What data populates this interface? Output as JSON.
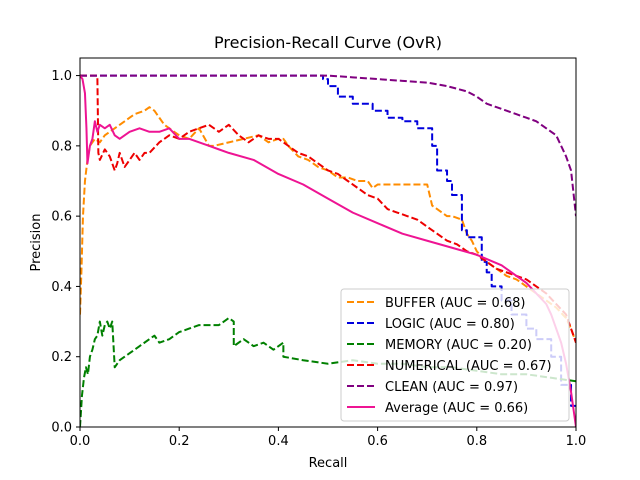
{
  "chart_data": {
    "type": "line",
    "title": "Precision-Recall Curve (OvR)",
    "xlabel": "Recall",
    "ylabel": "Precision",
    "xlim": [
      0.0,
      1.0
    ],
    "ylim": [
      0.0,
      1.05
    ],
    "xticks": [
      "0.0",
      "0.2",
      "0.4",
      "0.6",
      "0.8",
      "1.0"
    ],
    "yticks": [
      "0.0",
      "0.2",
      "0.4",
      "0.6",
      "0.8",
      "1.0"
    ],
    "grid": false,
    "legend_position": "lower-right",
    "series": [
      {
        "name": "BUFFER (AUC = 0.68)",
        "color": "#ff8c00",
        "style": "dashed",
        "x": [
          0.0,
          0.003,
          0.006,
          0.01,
          0.015,
          0.02,
          0.03,
          0.04,
          0.05,
          0.06,
          0.07,
          0.08,
          0.09,
          0.1,
          0.11,
          0.12,
          0.13,
          0.14,
          0.15,
          0.16,
          0.17,
          0.18,
          0.2,
          0.22,
          0.24,
          0.26,
          0.27,
          0.3,
          0.33,
          0.36,
          0.38,
          0.4,
          0.41,
          0.42,
          0.44,
          0.46,
          0.48,
          0.5,
          0.52,
          0.54,
          0.56,
          0.58,
          0.59,
          0.6,
          0.62,
          0.64,
          0.66,
          0.68,
          0.7,
          0.71,
          0.72,
          0.74,
          0.75,
          0.77,
          0.78,
          0.79,
          0.8,
          0.82,
          0.84,
          0.86,
          0.88,
          0.9,
          0.92,
          0.94,
          0.96,
          0.98,
          0.99,
          1.0
        ],
        "y": [
          0.32,
          0.45,
          0.6,
          0.7,
          0.76,
          0.8,
          0.82,
          0.81,
          0.83,
          0.84,
          0.85,
          0.86,
          0.87,
          0.88,
          0.89,
          0.895,
          0.9,
          0.91,
          0.9,
          0.88,
          0.86,
          0.85,
          0.83,
          0.82,
          0.85,
          0.8,
          0.8,
          0.81,
          0.82,
          0.83,
          0.81,
          0.82,
          0.82,
          0.8,
          0.77,
          0.76,
          0.74,
          0.73,
          0.71,
          0.71,
          0.7,
          0.7,
          0.68,
          0.69,
          0.69,
          0.69,
          0.69,
          0.69,
          0.69,
          0.63,
          0.62,
          0.6,
          0.6,
          0.59,
          0.55,
          0.53,
          0.5,
          0.47,
          0.45,
          0.43,
          0.42,
          0.4,
          0.38,
          0.36,
          0.34,
          0.31,
          0.28,
          0.24
        ]
      },
      {
        "name": "LOGIC (AUC = 0.80)",
        "color": "#0000dd",
        "style": "dashed",
        "x": [
          0.0,
          0.49,
          0.49,
          0.5,
          0.5,
          0.52,
          0.52,
          0.55,
          0.55,
          0.59,
          0.59,
          0.62,
          0.62,
          0.65,
          0.65,
          0.68,
          0.68,
          0.71,
          0.71,
          0.72,
          0.72,
          0.74,
          0.74,
          0.75,
          0.75,
          0.77,
          0.77,
          0.78,
          0.78,
          0.81,
          0.81,
          0.82,
          0.82,
          0.83,
          0.83,
          0.85,
          0.85,
          0.87,
          0.87,
          0.9,
          0.9,
          0.92,
          0.92,
          0.95,
          0.95,
          0.97,
          0.97,
          0.99,
          0.99,
          1.0
        ],
        "y": [
          1.0,
          1.0,
          0.99,
          0.99,
          0.97,
          0.97,
          0.94,
          0.94,
          0.92,
          0.92,
          0.9,
          0.9,
          0.88,
          0.88,
          0.87,
          0.87,
          0.85,
          0.85,
          0.8,
          0.8,
          0.73,
          0.73,
          0.7,
          0.7,
          0.66,
          0.66,
          0.56,
          0.56,
          0.54,
          0.54,
          0.47,
          0.47,
          0.44,
          0.44,
          0.4,
          0.4,
          0.36,
          0.36,
          0.32,
          0.32,
          0.28,
          0.28,
          0.25,
          0.25,
          0.2,
          0.2,
          0.12,
          0.12,
          0.06,
          0.06
        ]
      },
      {
        "name": "MEMORY (AUC = 0.20)",
        "color": "#008000",
        "style": "dashed",
        "x": [
          0.0,
          0.004,
          0.008,
          0.012,
          0.016,
          0.02,
          0.025,
          0.03,
          0.035,
          0.04,
          0.045,
          0.05,
          0.055,
          0.06,
          0.065,
          0.07,
          0.08,
          0.09,
          0.1,
          0.12,
          0.14,
          0.15,
          0.16,
          0.18,
          0.2,
          0.22,
          0.24,
          0.26,
          0.28,
          0.3,
          0.31,
          0.31,
          0.33,
          0.35,
          0.37,
          0.39,
          0.4,
          0.41,
          0.41,
          0.45,
          0.5,
          0.55,
          0.6,
          0.65,
          0.7,
          0.75,
          0.8,
          0.85,
          0.9,
          0.95,
          1.0
        ],
        "y": [
          0.0,
          0.09,
          0.14,
          0.17,
          0.15,
          0.2,
          0.22,
          0.25,
          0.26,
          0.3,
          0.26,
          0.29,
          0.3,
          0.28,
          0.3,
          0.17,
          0.19,
          0.2,
          0.21,
          0.23,
          0.25,
          0.26,
          0.24,
          0.25,
          0.27,
          0.28,
          0.29,
          0.29,
          0.29,
          0.31,
          0.3,
          0.23,
          0.25,
          0.23,
          0.24,
          0.22,
          0.23,
          0.24,
          0.2,
          0.19,
          0.18,
          0.19,
          0.18,
          0.18,
          0.17,
          0.17,
          0.16,
          0.15,
          0.15,
          0.14,
          0.13
        ]
      },
      {
        "name": "NUMERICAL (AUC = 0.67)",
        "color": "#ee0000",
        "style": "dashed",
        "x": [
          0.0,
          0.01,
          0.02,
          0.03,
          0.035,
          0.037,
          0.04,
          0.05,
          0.06,
          0.07,
          0.075,
          0.08,
          0.09,
          0.1,
          0.11,
          0.12,
          0.13,
          0.14,
          0.16,
          0.18,
          0.2,
          0.22,
          0.24,
          0.26,
          0.28,
          0.3,
          0.32,
          0.34,
          0.36,
          0.38,
          0.4,
          0.42,
          0.44,
          0.46,
          0.48,
          0.5,
          0.52,
          0.54,
          0.56,
          0.58,
          0.6,
          0.62,
          0.64,
          0.66,
          0.68,
          0.7,
          0.72,
          0.74,
          0.76,
          0.78,
          0.8,
          0.82,
          0.84,
          0.86,
          0.88,
          0.9,
          0.92,
          0.94,
          0.96,
          0.98,
          1.0
        ],
        "y": [
          1.0,
          1.0,
          1.0,
          1.0,
          1.0,
          0.78,
          0.76,
          0.79,
          0.77,
          0.73,
          0.75,
          0.78,
          0.74,
          0.76,
          0.78,
          0.76,
          0.78,
          0.78,
          0.81,
          0.83,
          0.82,
          0.84,
          0.85,
          0.86,
          0.84,
          0.86,
          0.83,
          0.81,
          0.83,
          0.82,
          0.82,
          0.8,
          0.78,
          0.77,
          0.75,
          0.73,
          0.72,
          0.7,
          0.68,
          0.66,
          0.65,
          0.62,
          0.61,
          0.6,
          0.59,
          0.57,
          0.55,
          0.53,
          0.52,
          0.5,
          0.49,
          0.47,
          0.45,
          0.44,
          0.43,
          0.42,
          0.4,
          0.38,
          0.35,
          0.32,
          0.24
        ]
      },
      {
        "name": "CLEAN (AUC = 0.97)",
        "color": "#800080",
        "style": "dashed",
        "x": [
          0.0,
          0.5,
          0.55,
          0.6,
          0.65,
          0.7,
          0.74,
          0.78,
          0.8,
          0.82,
          0.84,
          0.86,
          0.88,
          0.9,
          0.92,
          0.94,
          0.95,
          0.96,
          0.97,
          0.98,
          0.99,
          1.0
        ],
        "y": [
          1.0,
          1.0,
          0.995,
          0.99,
          0.985,
          0.98,
          0.97,
          0.955,
          0.94,
          0.92,
          0.91,
          0.9,
          0.89,
          0.88,
          0.87,
          0.85,
          0.84,
          0.83,
          0.8,
          0.77,
          0.73,
          0.6
        ]
      },
      {
        "name": "Average (AUC = 0.66)",
        "color": "#ee1493",
        "style": "solid",
        "x": [
          0.0,
          0.005,
          0.01,
          0.013,
          0.015,
          0.02,
          0.025,
          0.03,
          0.035,
          0.04,
          0.05,
          0.06,
          0.07,
          0.08,
          0.09,
          0.1,
          0.12,
          0.14,
          0.16,
          0.18,
          0.2,
          0.22,
          0.24,
          0.26,
          0.28,
          0.3,
          0.35,
          0.4,
          0.45,
          0.5,
          0.55,
          0.6,
          0.65,
          0.7,
          0.75,
          0.8,
          0.85,
          0.88,
          0.9,
          0.92,
          0.94,
          0.95,
          0.96,
          0.97,
          0.98,
          0.99,
          1.0
        ],
        "y": [
          1.0,
          0.99,
          0.95,
          0.85,
          0.75,
          0.8,
          0.82,
          0.87,
          0.84,
          0.86,
          0.85,
          0.86,
          0.83,
          0.82,
          0.83,
          0.84,
          0.85,
          0.84,
          0.84,
          0.85,
          0.82,
          0.82,
          0.81,
          0.8,
          0.79,
          0.78,
          0.76,
          0.72,
          0.69,
          0.65,
          0.61,
          0.58,
          0.55,
          0.53,
          0.51,
          0.49,
          0.46,
          0.43,
          0.41,
          0.38,
          0.35,
          0.32,
          0.28,
          0.24,
          0.18,
          0.1,
          0.0
        ]
      }
    ]
  }
}
